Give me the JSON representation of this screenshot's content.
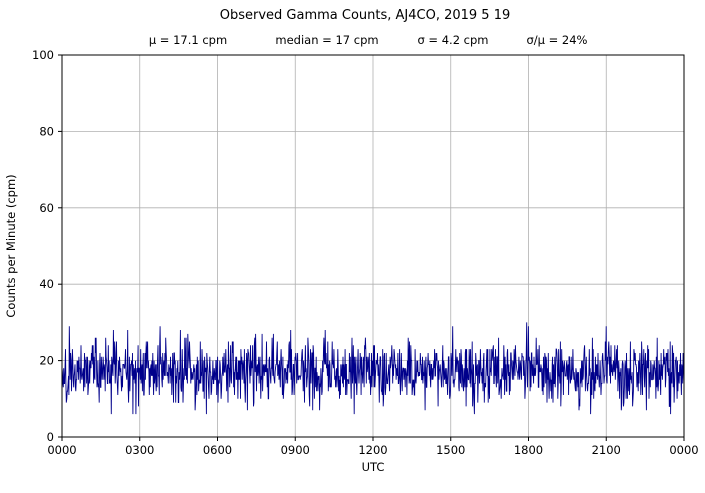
{
  "chart_data": {
    "type": "line",
    "title": "Observed Gamma Counts, AJ4CO, 2019 5 19",
    "subtitle_parts": [
      "μ = 17.1 cpm",
      "median = 17 cpm",
      "σ = 4.2 cpm",
      "σ/μ = 24%"
    ],
    "stats": {
      "mean_cpm": 17.1,
      "median_cpm": 17,
      "sigma_cpm": 4.2,
      "sigma_over_mean_pct": 24
    },
    "xlabel": "UTC",
    "ylabel": "Counts per Minute (cpm)",
    "ylim": [
      0,
      100
    ],
    "yticks": [
      0,
      20,
      40,
      60,
      80,
      100
    ],
    "xtick_hours": [
      0,
      3,
      6,
      9,
      12,
      15,
      18,
      21,
      24
    ],
    "xticklabels": [
      "0000",
      "0300",
      "0600",
      "0900",
      "1200",
      "1500",
      "1800",
      "2100",
      "0000"
    ],
    "grid": true,
    "grid_color": "#b0b0b0",
    "line_color": "#00008b",
    "series": {
      "name": "observed gamma counts",
      "n_points": 1440,
      "mean": 17.1,
      "median": 17,
      "sigma": 4.2,
      "clip_min": 6,
      "clip_max": 33,
      "seed": 20190519
    }
  }
}
